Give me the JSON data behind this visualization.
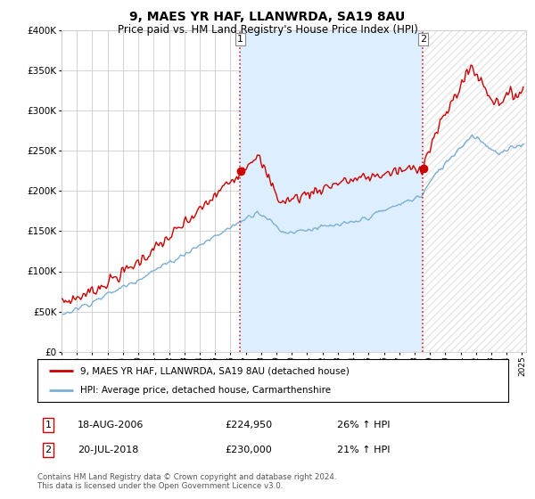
{
  "title": "9, MAES YR HAF, LLANWRDA, SA19 8AU",
  "subtitle": "Price paid vs. HM Land Registry's House Price Index (HPI)",
  "ylim": [
    0,
    400000
  ],
  "yticks": [
    0,
    50000,
    100000,
    150000,
    200000,
    250000,
    300000,
    350000,
    400000
  ],
  "ytick_labels": [
    "£0",
    "£50K",
    "£100K",
    "£150K",
    "£200K",
    "£250K",
    "£300K",
    "£350K",
    "£400K"
  ],
  "property_color": "#cc0000",
  "hpi_color": "#7bafd4",
  "shade_color": "#ddeeff",
  "marker1_x": 2006.63,
  "marker2_x": 2018.55,
  "marker1_label": "18-AUG-2006",
  "marker1_price": "224,950",
  "marker1_pct": "26% ↑ HPI",
  "marker2_label": "20-JUL-2018",
  "marker2_price": "230,000",
  "marker2_pct": "21% ↑ HPI",
  "legend_property": "9, MAES YR HAF, LLANWRDA, SA19 8AU (detached house)",
  "legend_hpi": "HPI: Average price, detached house, Carmarthenshire",
  "footnote": "Contains HM Land Registry data © Crown copyright and database right 2024.\nThis data is licensed under the Open Government Licence v3.0.",
  "background_color": "#ffffff",
  "grid_color": "#cccccc",
  "hatch_color": "#cccccc"
}
